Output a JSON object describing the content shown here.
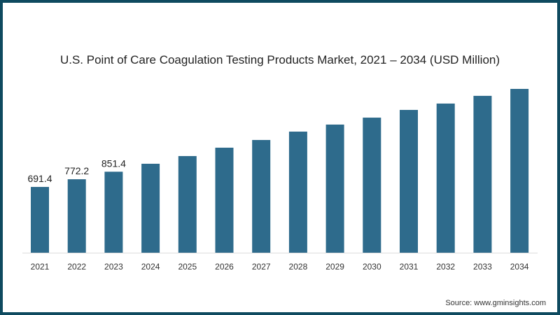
{
  "chart_data": {
    "type": "bar",
    "title": "U.S. Point of Care Coagulation Testing Products Market, 2021 – 2034 (USD Million)",
    "xlabel": "",
    "ylabel": "",
    "categories": [
      "2021",
      "2022",
      "2023",
      "2024",
      "2025",
      "2026",
      "2027",
      "2028",
      "2029",
      "2030",
      "2031",
      "2032",
      "2033",
      "2034"
    ],
    "values": [
      691.4,
      772.2,
      851.4,
      935,
      1016,
      1104,
      1185,
      1273,
      1347,
      1420,
      1501,
      1568,
      1649,
      1722
    ],
    "data_labels": [
      "691.4",
      "772.2",
      "851.4",
      null,
      null,
      null,
      null,
      null,
      null,
      null,
      null,
      null,
      null,
      null
    ],
    "ylim": [
      0,
      1722
    ],
    "grid": false,
    "bar_color": "#2e6b8c",
    "source": "Source: www.gminsights.com"
  }
}
